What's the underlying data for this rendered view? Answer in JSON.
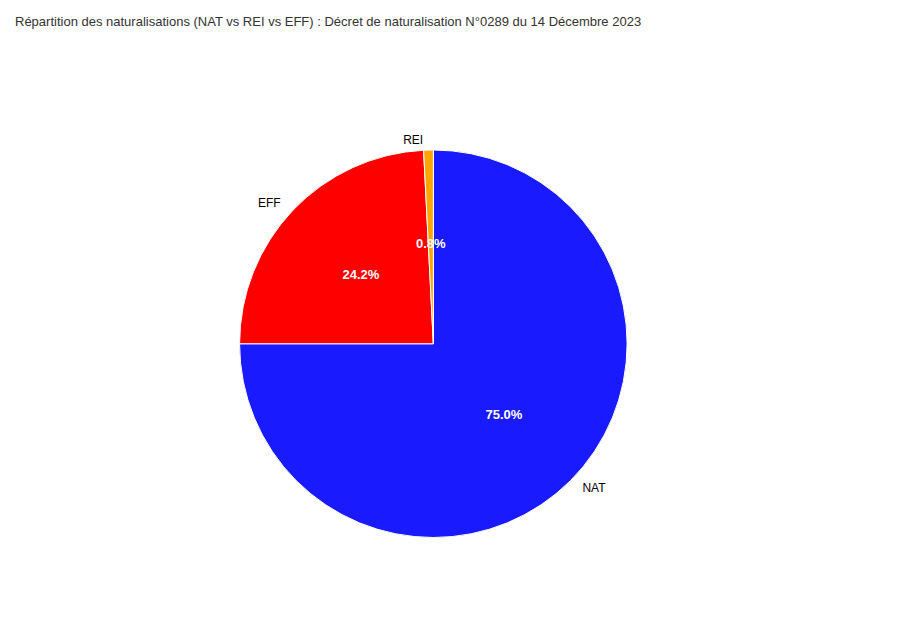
{
  "chart_data": {
    "type": "pie",
    "title": "Répartition des naturalisations (NAT vs REI vs EFF) : Décret de naturalisation N°0289 du 14 Décembre 2023",
    "categories": [
      "NAT",
      "EFF",
      "REI"
    ],
    "values": [
      75.0,
      24.2,
      0.8
    ],
    "value_labels": [
      "75.0%",
      "24.2%",
      "0.8%"
    ],
    "colors": [
      "#1a1aff",
      "#ff0000",
      "#ffa500"
    ],
    "data_labels": true
  }
}
